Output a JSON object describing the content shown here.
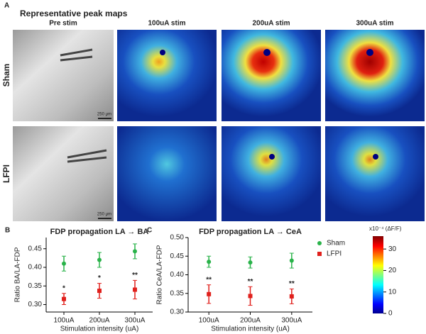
{
  "panel_a": {
    "label": "A",
    "title": "Representative peak maps",
    "columns": [
      "Pre stim",
      "100uA stim",
      "200uA stim",
      "300uA stim"
    ],
    "rows": [
      "Sham",
      "LFPI"
    ],
    "row_colors": [
      "#22aa55",
      "#e02020"
    ],
    "scale_bar": "250 μm"
  },
  "chart_data": [
    {
      "type": "errorbar",
      "label": "B",
      "title": "FDP propagation LA → BA",
      "ylabel": "Ratio BA/LA-FDP",
      "xlabel": "Stimulation intensity (uA)",
      "categories": [
        "100uA",
        "200uA",
        "300uA"
      ],
      "ylim": [
        0.28,
        0.48
      ],
      "yticks": [
        {
          "value": 0.3,
          "label": "0.30"
        },
        {
          "value": 0.35,
          "label": "0.35"
        },
        {
          "value": 0.4,
          "label": "0.40"
        },
        {
          "value": 0.45,
          "label": "0.45"
        }
      ],
      "series": [
        {
          "color": "#2ab34a",
          "marker": "circle",
          "values": [
            0.41,
            0.42,
            0.443
          ],
          "errors": [
            0.02,
            0.02,
            0.02
          ]
        },
        {
          "color": "#e0201c",
          "marker": "square",
          "values": [
            0.315,
            0.337,
            0.34
          ],
          "errors": [
            0.015,
            0.02,
            0.025
          ]
        }
      ],
      "significance": [
        "*",
        "*",
        "**"
      ],
      "legend": false
    },
    {
      "type": "errorbar",
      "label": "C",
      "title": "FDP propagation LA → CeA",
      "ylabel": "Ratio CeA/LA-FDP",
      "xlabel": "Stimulation intensity (uA)",
      "categories": [
        "100uA",
        "200uA",
        "300uA"
      ],
      "ylim": [
        0.3,
        0.5
      ],
      "yticks": [
        {
          "value": 0.3,
          "label": "0.30"
        },
        {
          "value": 0.35,
          "label": "0.35"
        },
        {
          "value": 0.4,
          "label": "0.40"
        },
        {
          "value": 0.45,
          "label": "0.45"
        },
        {
          "value": 0.5,
          "label": "0.50"
        }
      ],
      "series": [
        {
          "name": "Sham",
          "color": "#2ab34a",
          "marker": "circle",
          "values": [
            0.435,
            0.433,
            0.438
          ],
          "errors": [
            0.015,
            0.015,
            0.02
          ]
        },
        {
          "name": "LFPI",
          "color": "#e0201c",
          "marker": "square",
          "values": [
            0.348,
            0.343,
            0.342
          ],
          "errors": [
            0.025,
            0.025,
            0.02
          ]
        }
      ],
      "significance": [
        "**",
        "**",
        "**"
      ],
      "legend": true
    }
  ],
  "colorbar": {
    "label": "x10⁻⁴ (ΔF/F)",
    "lim": [
      0,
      36
    ],
    "ticks": [
      0,
      10,
      20,
      30
    ]
  }
}
